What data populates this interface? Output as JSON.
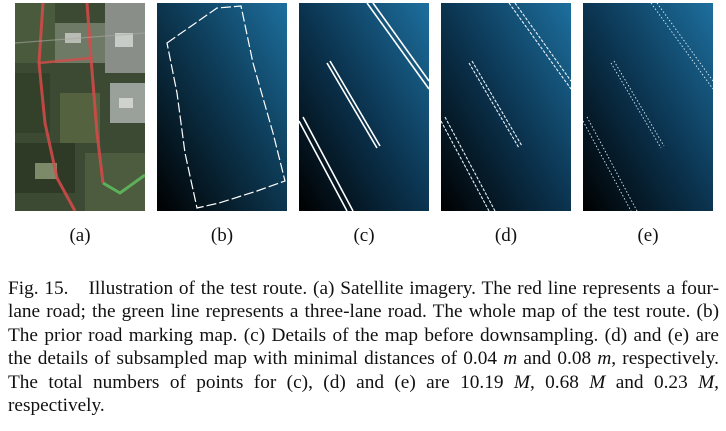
{
  "figure": {
    "panels": [
      {
        "label": "(a)",
        "icon": "satellite-image"
      },
      {
        "label": "(b)",
        "icon": "road-marking-map"
      },
      {
        "label": "(c)",
        "icon": "map-detail"
      },
      {
        "label": "(d)",
        "icon": "map-detail-subsampled"
      },
      {
        "label": "(e)",
        "icon": "map-detail-subsampled"
      }
    ],
    "colors": {
      "road_four_lane": "#d84a4a",
      "road_three_lane": "#5fbf5f",
      "map_blue": "#1d6f9e",
      "map_dark": "#000000"
    },
    "caption": {
      "figno": "Fig. 15.",
      "p1": "Illustration of the test route. (a) Satellite imagery. The red line represents a four-lane road; the green line represents a three-lane road. The whole map of the test route. (b) The prior road marking map. (c) Details of the map before downsampling. (d) and (e) are the details of subsampled map with minimal distances of 0.04 ",
      "u1": "m",
      "p2": " and 0.08 ",
      "u2": "m",
      "p3": ", respectively. The total numbers of points for (c), (d) and (e) are 10.19 ",
      "u3": "M",
      "p4": ", 0.68 ",
      "u4": "M",
      "p5": " and 0.23 ",
      "u5": "M",
      "p6": ", respectively."
    }
  }
}
